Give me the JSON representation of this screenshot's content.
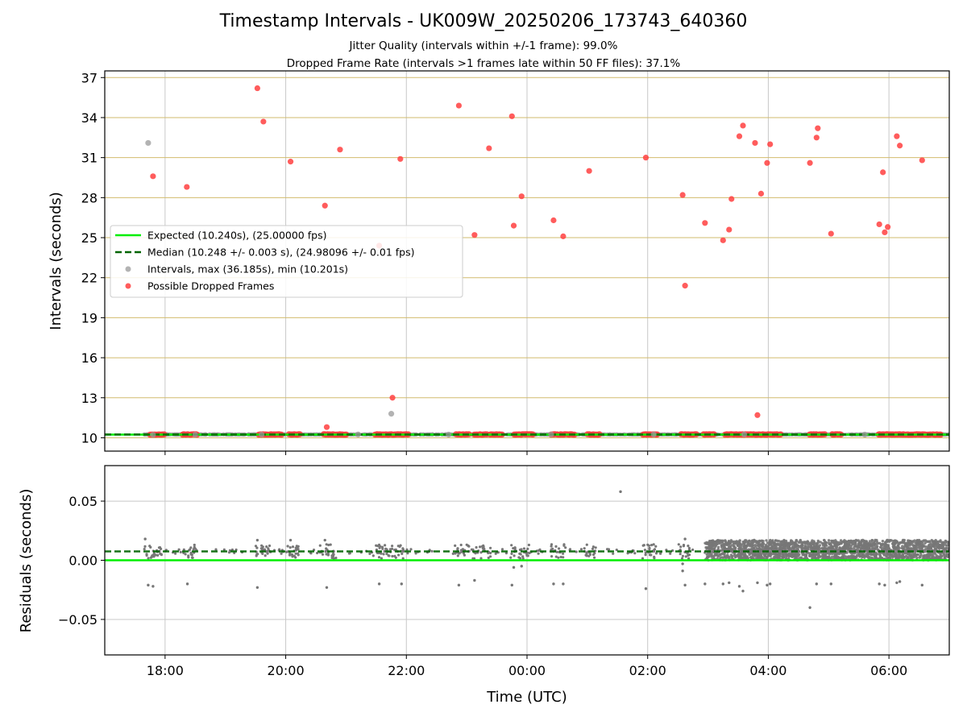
{
  "chart_data": {
    "type": "scatter",
    "title": "Timestamp Intervals - UK009W_20250206_173743_640360",
    "subtitles": [
      "Jitter Quality (intervals within +/-1 frame): 99.0%",
      "Dropped Frame Rate (intervals >1 frames late within 50 FF files): 37.1%"
    ],
    "xlabel": "Time (UTC)",
    "x_unit": "hours since 18:00 UTC",
    "xlim": [
      -1.0,
      13.0
    ],
    "x_ticks": [
      {
        "v": 0,
        "label": "18:00"
      },
      {
        "v": 2,
        "label": "20:00"
      },
      {
        "v": 4,
        "label": "22:00"
      },
      {
        "v": 6,
        "label": "00:00"
      },
      {
        "v": 8,
        "label": "02:00"
      },
      {
        "v": 10,
        "label": "04:00"
      },
      {
        "v": 12,
        "label": "06:00"
      }
    ],
    "panels": {
      "intervals": {
        "ylabel": "Intervals (seconds)",
        "ylim": [
          9.0,
          37.5
        ],
        "y_ticks": [
          {
            "v": 10,
            "label": "10"
          },
          {
            "v": 13,
            "label": "13"
          },
          {
            "v": 16,
            "label": "16"
          },
          {
            "v": 19,
            "label": "19"
          },
          {
            "v": 22,
            "label": "22"
          },
          {
            "v": 25,
            "label": "25"
          },
          {
            "v": 28,
            "label": "28"
          },
          {
            "v": 31,
            "label": "31"
          },
          {
            "v": 34,
            "label": "34"
          },
          {
            "v": 37,
            "label": "37"
          }
        ],
        "legend_position": "center-left",
        "legend": [
          {
            "key": "expected",
            "label": "Expected (10.240s), (25.00000 fps)"
          },
          {
            "key": "median",
            "label": "Median (10.248 +/- 0.003 s), (24.98096 +/- 0.01 fps)"
          },
          {
            "key": "intervals",
            "label": "Intervals, max (36.185s), min (10.201s)"
          },
          {
            "key": "dropped",
            "label": "Possible Dropped Frames"
          }
        ],
        "expected": 10.24,
        "median": 10.248,
        "intervals_points": [
          [
            -0.28,
            32.1
          ],
          [
            3.75,
            11.8
          ],
          [
            -0.2,
            10.22
          ],
          [
            0.5,
            10.23
          ],
          [
            1.6,
            10.24
          ],
          [
            3.2,
            10.25
          ],
          [
            4.7,
            10.24
          ],
          [
            6.4,
            10.25
          ],
          [
            8.1,
            10.25
          ],
          [
            9.6,
            10.25
          ],
          [
            11.6,
            10.24
          ]
        ],
        "dropped_points": [
          [
            -0.2,
            29.6
          ],
          [
            0.36,
            28.8
          ],
          [
            1.53,
            36.2
          ],
          [
            1.63,
            33.7
          ],
          [
            2.08,
            30.7
          ],
          [
            2.65,
            27.4
          ],
          [
            2.68,
            10.8
          ],
          [
            2.9,
            31.6
          ],
          [
            3.55,
            24.4
          ],
          [
            3.77,
            13.0
          ],
          [
            3.9,
            30.9
          ],
          [
            4.87,
            34.9
          ],
          [
            5.13,
            25.2
          ],
          [
            5.37,
            31.7
          ],
          [
            5.75,
            34.1
          ],
          [
            5.78,
            25.9
          ],
          [
            5.91,
            28.1
          ],
          [
            6.44,
            26.3
          ],
          [
            6.6,
            25.1
          ],
          [
            7.03,
            30.0
          ],
          [
            7.97,
            31.0
          ],
          [
            8.58,
            28.2
          ],
          [
            8.62,
            21.4
          ],
          [
            8.95,
            26.1
          ],
          [
            9.25,
            24.8
          ],
          [
            9.35,
            25.6
          ],
          [
            9.39,
            27.9
          ],
          [
            9.52,
            32.6
          ],
          [
            9.58,
            33.4
          ],
          [
            9.78,
            32.1
          ],
          [
            9.82,
            11.7
          ],
          [
            9.88,
            28.3
          ],
          [
            9.98,
            30.6
          ],
          [
            10.03,
            32.0
          ],
          [
            10.69,
            30.6
          ],
          [
            10.8,
            32.5
          ],
          [
            10.82,
            33.2
          ],
          [
            11.04,
            25.3
          ],
          [
            11.84,
            26.0
          ],
          [
            11.9,
            29.9
          ],
          [
            11.93,
            25.4
          ],
          [
            11.98,
            25.8
          ],
          [
            12.13,
            32.6
          ],
          [
            12.18,
            31.9
          ],
          [
            12.55,
            30.8
          ]
        ],
        "dropped_baseline_clusters": [
          [
            -0.25,
            0.0
          ],
          [
            0.28,
            0.55
          ],
          [
            1.55,
            1.95
          ],
          [
            2.05,
            2.25
          ],
          [
            2.62,
            3.02
          ],
          [
            3.48,
            4.05
          ],
          [
            4.82,
            5.05
          ],
          [
            5.12,
            5.35
          ],
          [
            5.38,
            5.6
          ],
          [
            5.78,
            6.12
          ],
          [
            6.4,
            6.8
          ],
          [
            7.0,
            7.22
          ],
          [
            7.92,
            8.18
          ],
          [
            8.55,
            8.82
          ],
          [
            8.92,
            9.12
          ],
          [
            9.28,
            10.22
          ],
          [
            10.68,
            10.95
          ],
          [
            11.05,
            11.22
          ],
          [
            11.82,
            12.7
          ],
          [
            12.72,
            12.88
          ]
        ]
      },
      "residuals": {
        "ylabel": "Residuals (seconds)",
        "ylim": [
          -0.08,
          0.08
        ],
        "y_ticks": [
          {
            "v": 0.05,
            "label": "0.05"
          },
          {
            "v": 0.0,
            "label": "0.00"
          },
          {
            "v": -0.05,
            "label": "−0.05"
          }
        ],
        "expected": 0.0,
        "median": 0.0075,
        "residual_outliers": [
          [
            -0.28,
            -0.021
          ],
          [
            -0.2,
            -0.022
          ],
          [
            0.37,
            -0.02
          ],
          [
            1.53,
            -0.023
          ],
          [
            2.68,
            -0.023
          ],
          [
            3.55,
            -0.02
          ],
          [
            3.92,
            -0.02
          ],
          [
            4.87,
            -0.021
          ],
          [
            5.13,
            -0.017
          ],
          [
            5.75,
            -0.021
          ],
          [
            6.44,
            -0.02
          ],
          [
            6.6,
            -0.02
          ],
          [
            7.97,
            -0.024
          ],
          [
            8.58,
            -0.009
          ],
          [
            8.62,
            -0.021
          ],
          [
            8.95,
            -0.02
          ],
          [
            9.25,
            -0.02
          ],
          [
            9.35,
            -0.019
          ],
          [
            9.52,
            -0.022
          ],
          [
            9.58,
            -0.026
          ],
          [
            9.82,
            -0.019
          ],
          [
            9.98,
            -0.021
          ],
          [
            10.03,
            -0.02
          ],
          [
            10.69,
            -0.04
          ],
          [
            10.8,
            -0.02
          ],
          [
            11.04,
            -0.02
          ],
          [
            11.84,
            -0.02
          ],
          [
            11.93,
            -0.021
          ],
          [
            12.13,
            -0.019
          ],
          [
            12.18,
            -0.018
          ],
          [
            12.55,
            -0.021
          ],
          [
            7.55,
            0.058
          ],
          [
            -0.33,
            0.018
          ],
          [
            1.53,
            0.017
          ],
          [
            2.08,
            0.017
          ],
          [
            2.65,
            0.017
          ],
          [
            8.62,
            0.018
          ],
          [
            5.78,
            -0.006
          ],
          [
            5.91,
            -0.005
          ],
          [
            8.58,
            -0.003
          ]
        ],
        "early_clusters": [
          [
            -0.35,
            -0.05
          ],
          [
            0.3,
            0.5
          ],
          [
            1.5,
            1.75
          ],
          [
            2.0,
            2.25
          ],
          [
            2.55,
            2.85
          ],
          [
            3.45,
            3.95
          ],
          [
            4.8,
            5.05
          ],
          [
            5.1,
            5.4
          ],
          [
            5.7,
            6.05
          ],
          [
            6.4,
            6.65
          ],
          [
            6.95,
            7.15
          ],
          [
            7.9,
            8.15
          ],
          [
            8.5,
            8.7
          ]
        ],
        "dense_range": [
          8.95,
          13.0
        ]
      }
    }
  },
  "colors": {
    "expected": "#00ee00",
    "median": "#006400",
    "intervals": "#999999",
    "dropped": "#ff4040",
    "residual": "#777777",
    "hgrid_top": "#d2bb6e",
    "grid": "#c8c8c8"
  }
}
